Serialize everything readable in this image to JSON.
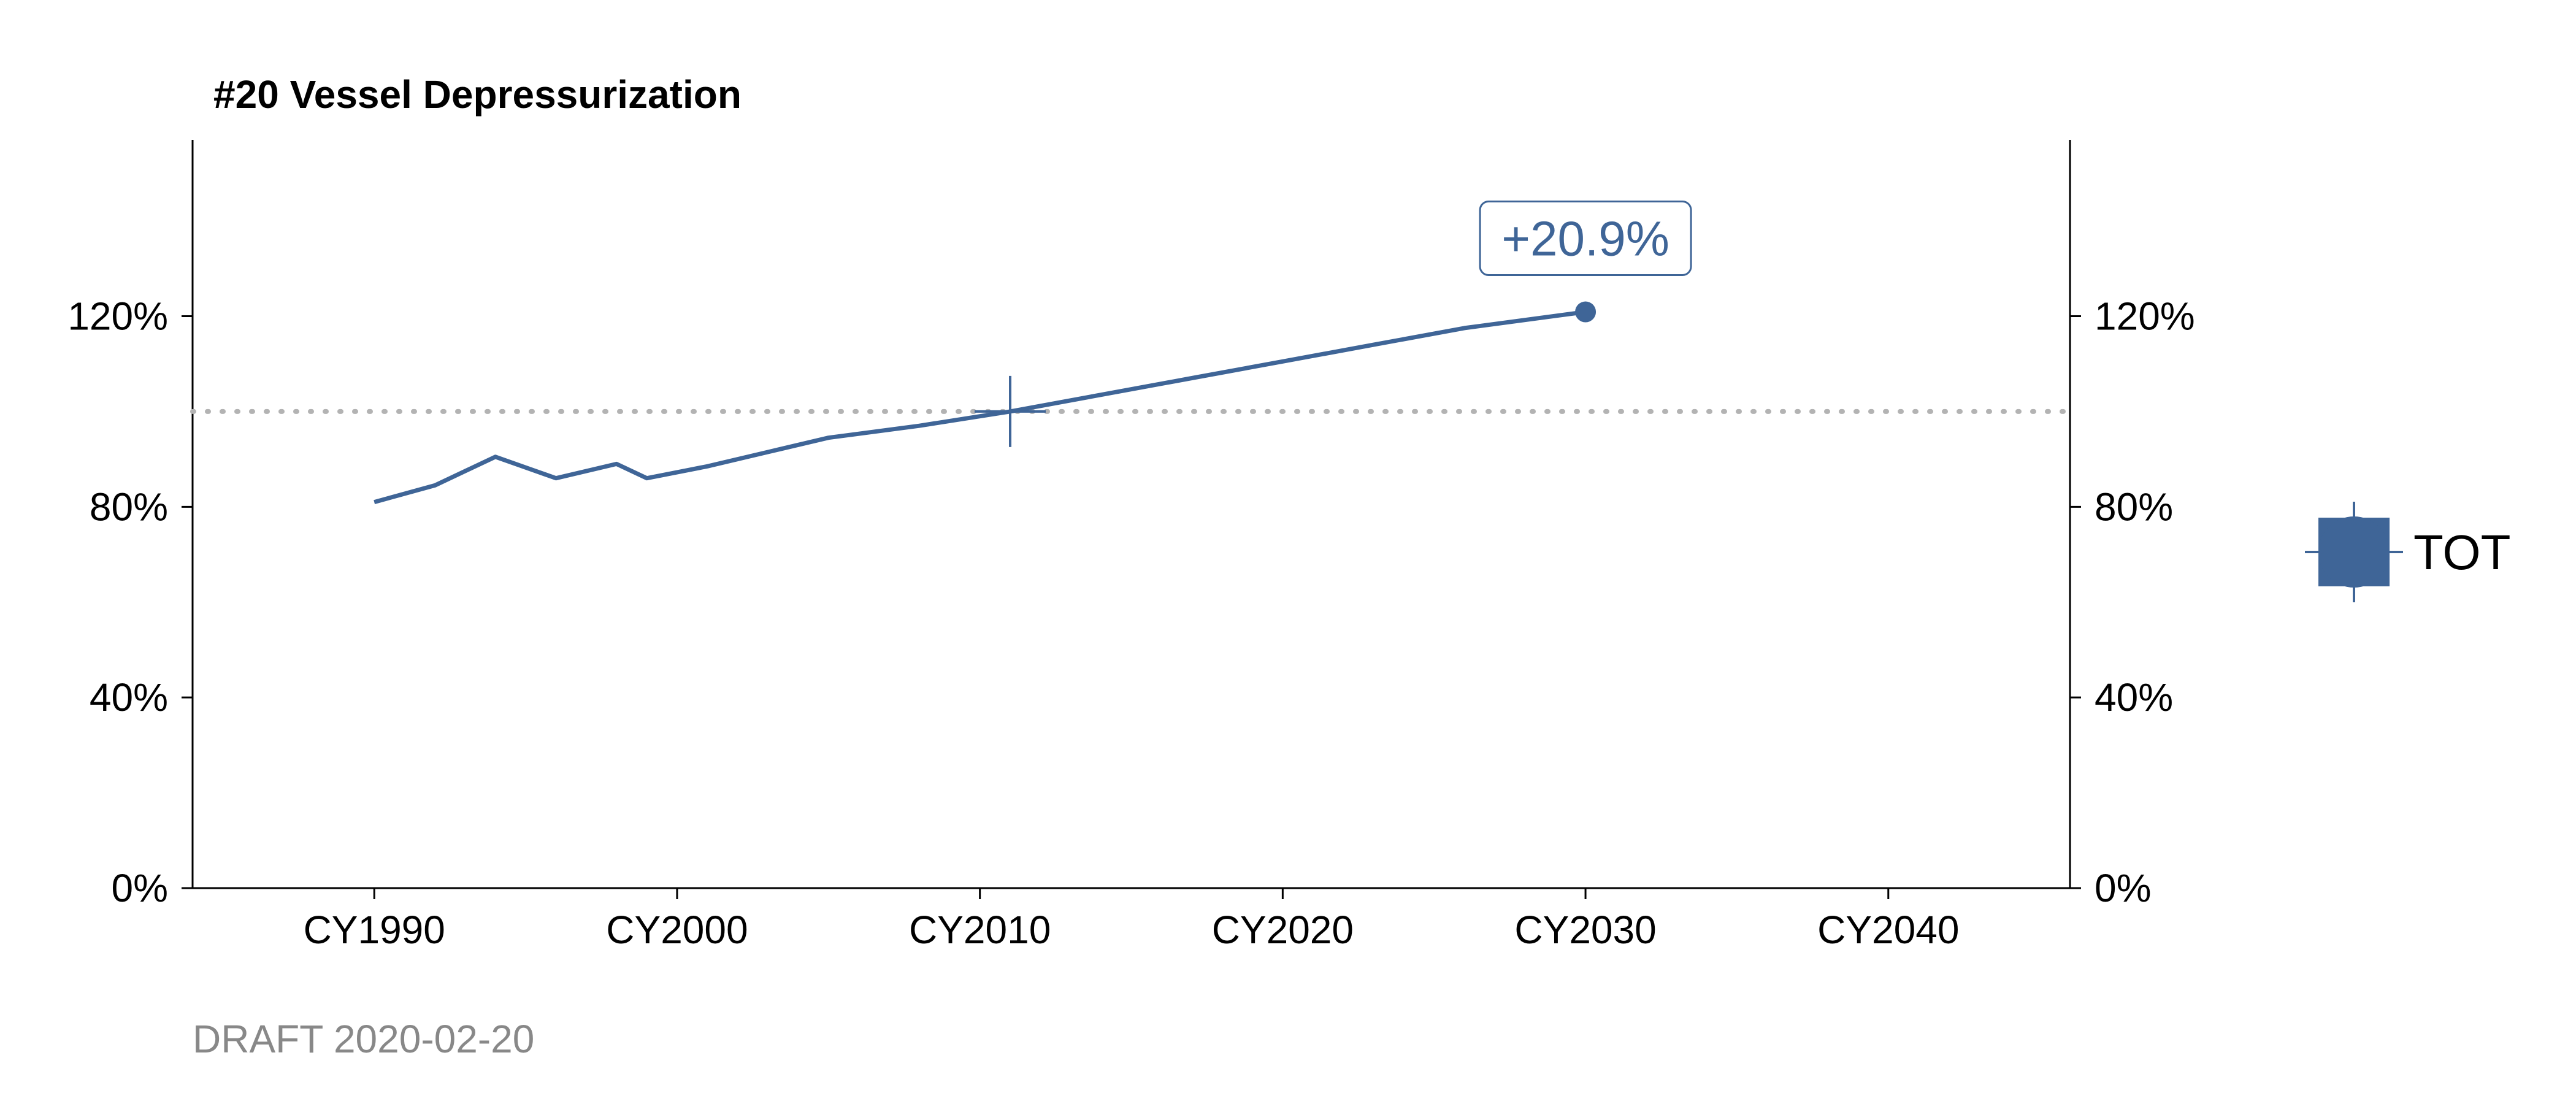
{
  "colors": {
    "series": "#3f6597",
    "reference": "#b3b3b3",
    "axis": "#000000",
    "footer": "#888888"
  },
  "chart_data": {
    "type": "line",
    "title": "#20 Vessel Depressurization",
    "xlabel": "",
    "ylabel": "",
    "x_axis": {
      "range": [
        1984,
        2046
      ],
      "ticks": [
        1990,
        2000,
        2010,
        2020,
        2030,
        2040
      ],
      "tick_labels": [
        "CY1990",
        "CY2000",
        "CY2010",
        "CY2020",
        "CY2030",
        "CY2040"
      ]
    },
    "y_axis": {
      "range": [
        0,
        157
      ],
      "ticks": [
        0,
        40,
        80,
        120
      ],
      "tick_labels": [
        "0%",
        "40%",
        "80%",
        "120%"
      ],
      "secondary_right": true
    },
    "grid": false,
    "reference_line": {
      "y": 100,
      "style": "dotted"
    },
    "series": [
      {
        "name": "TOT",
        "x": [
          1990,
          1992,
          1994,
          1996,
          1998,
          1999,
          2001,
          2003,
          2005,
          2008,
          2011,
          2014,
          2017,
          2020,
          2023,
          2026,
          2030
        ],
        "y": [
          81,
          84.5,
          90.5,
          86,
          89,
          86,
          88.5,
          91.5,
          94.5,
          97,
          100,
          103.5,
          107,
          110.5,
          114,
          117.5,
          120.9
        ]
      }
    ],
    "base_marker": {
      "x": 2011,
      "y": 100
    },
    "end_marker": {
      "x": 2030,
      "y": 120.9
    },
    "annotation": {
      "text": "+20.9%",
      "x": 2030,
      "y": 120.9
    },
    "legend": {
      "placement": "right",
      "entries": [
        "TOT"
      ]
    }
  },
  "footer": {
    "text": "DRAFT 2020-02-20"
  }
}
